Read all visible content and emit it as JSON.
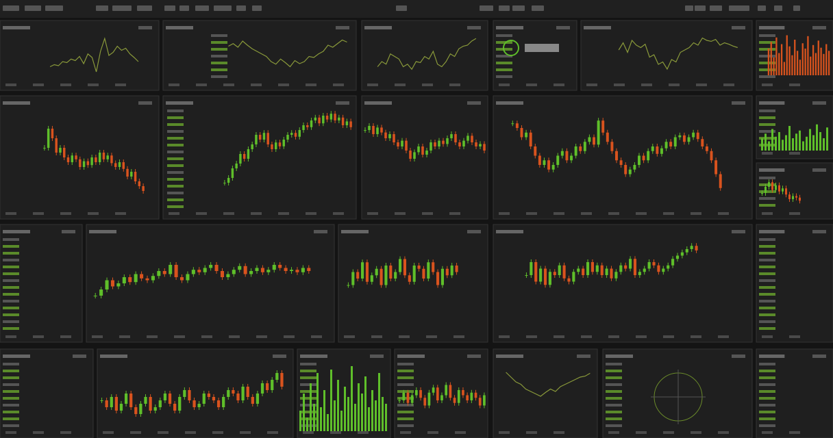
{
  "up_color": "#5fbf2a",
  "down_color": "#d9531e",
  "line_color": "#8a9a3a",
  "charts": [
    {
      "type": "line",
      "ylim": [
        0,
        100
      ],
      "values": [
        30,
        34,
        32,
        40,
        38,
        45,
        42,
        50,
        36,
        55,
        48,
        20,
        60,
        85,
        52,
        58,
        70,
        62,
        66,
        55,
        48,
        40
      ]
    },
    {
      "type": "line",
      "ylim": [
        0,
        100
      ],
      "values": [
        70,
        75,
        68,
        80,
        72,
        65,
        60,
        55,
        50,
        40,
        35,
        45,
        38,
        30,
        42,
        36,
        40,
        50,
        48,
        55,
        60,
        72,
        68,
        75,
        82,
        78
      ]
    },
    {
      "type": "line",
      "ylim": [
        0,
        100
      ],
      "values": [
        30,
        40,
        35,
        55,
        50,
        45,
        30,
        35,
        25,
        40,
        38,
        50,
        45,
        60,
        35,
        30,
        40,
        55,
        50,
        65,
        70,
        72,
        80,
        85
      ]
    },
    {
      "type": "line",
      "ylim": [
        0,
        100
      ],
      "values": [
        60,
        75,
        55,
        80,
        70,
        65,
        72,
        45,
        50,
        30,
        35,
        20,
        40,
        35,
        55,
        60,
        65,
        75,
        70,
        85,
        80,
        78,
        82,
        70,
        75,
        72,
        68,
        65
      ]
    },
    {
      "type": "bar",
      "ylim": [
        0,
        100
      ],
      "values": [
        60,
        75,
        40,
        85,
        50,
        70,
        30,
        90,
        65,
        45,
        80,
        55,
        35,
        72,
        60,
        88,
        42,
        68,
        50,
        78,
        62,
        48,
        70,
        55
      ]
    },
    {
      "type": "candlestick",
      "ylim": [
        0,
        100
      ],
      "values": [
        60,
        80,
        70,
        55,
        60,
        50,
        45,
        52,
        48,
        40,
        46,
        42,
        50,
        45,
        55,
        48,
        52,
        44,
        40,
        45,
        38,
        30,
        35,
        25,
        20,
        15
      ]
    },
    {
      "type": "candlestick",
      "ylim": [
        0,
        100
      ],
      "values": [
        20,
        25,
        35,
        40,
        50,
        45,
        55,
        60,
        70,
        65,
        72,
        60,
        55,
        62,
        58,
        65,
        70,
        72,
        68,
        75,
        80,
        78,
        85,
        88,
        82,
        90,
        86,
        92,
        85,
        88,
        80,
        84,
        78
      ]
    },
    {
      "type": "candlestick",
      "ylim": [
        0,
        100
      ],
      "values": [
        75,
        80,
        70,
        78,
        72,
        65,
        70,
        60,
        55,
        62,
        50,
        40,
        48,
        55,
        45,
        50,
        60,
        55,
        62,
        58,
        65,
        70,
        60,
        55,
        62,
        68,
        60,
        55,
        58,
        50
      ]
    },
    {
      "type": "candlestick",
      "ylim": [
        0,
        100
      ],
      "values": [
        85,
        80,
        70,
        75,
        60,
        50,
        40,
        45,
        35,
        40,
        50,
        55,
        45,
        50,
        60,
        55,
        65,
        70,
        62,
        88,
        75,
        65,
        55,
        45,
        40,
        30,
        35,
        40,
        50,
        45,
        55,
        60,
        52,
        58,
        65,
        60,
        70,
        72,
        65,
        70,
        75,
        68,
        60,
        55,
        45,
        30,
        15
      ]
    },
    {
      "type": "bar",
      "ylim": [
        0,
        100
      ],
      "values": [
        40,
        55,
        30,
        70,
        45,
        60,
        35,
        50,
        80,
        40,
        55,
        65,
        30,
        45,
        70,
        50,
        85,
        60,
        40,
        75
      ]
    },
    {
      "type": "candlestick",
      "ylim": [
        0,
        100
      ],
      "values": [
        40,
        60,
        75,
        50,
        65,
        45,
        55,
        35,
        20,
        30,
        25,
        15
      ]
    },
    {
      "type": "candlestick",
      "ylim": [
        0,
        100
      ],
      "values": [
        20,
        30,
        45,
        35,
        40,
        50,
        42,
        55,
        48,
        45,
        52,
        60,
        55,
        70,
        50,
        45,
        55,
        62,
        58,
        65,
        70,
        60,
        50,
        55,
        62,
        68,
        55,
        60,
        65,
        58,
        62,
        70,
        65,
        60,
        62,
        58,
        65,
        60
      ]
    },
    {
      "type": "candlestick",
      "ylim": [
        0,
        100
      ],
      "values": [
        30,
        50,
        40,
        65,
        35,
        45,
        55,
        30,
        60,
        40,
        50,
        70,
        45,
        35,
        60,
        55,
        40,
        65,
        50,
        30,
        55,
        45,
        60,
        50
      ]
    },
    {
      "type": "candlestick",
      "ylim": [
        0,
        100
      ],
      "values": [
        40,
        60,
        30,
        50,
        25,
        45,
        40,
        55,
        35,
        30,
        45,
        50,
        40,
        60,
        45,
        55,
        40,
        50,
        35,
        45,
        55,
        50,
        65,
        40,
        45,
        50,
        60,
        55,
        45,
        50,
        55,
        65,
        70,
        75,
        80,
        85,
        78
      ]
    },
    {
      "type": "candlestick",
      "ylim": [
        0,
        100
      ],
      "values": [
        40,
        30,
        45,
        25,
        35,
        50,
        30,
        20,
        35,
        45,
        25,
        30,
        40,
        50,
        35,
        25,
        45,
        55,
        40,
        30,
        35,
        50,
        45,
        40,
        30,
        45,
        55,
        50,
        40,
        60,
        45,
        35,
        50,
        65,
        55,
        70,
        80,
        60
      ]
    },
    {
      "type": "bar",
      "ylim": [
        0,
        100
      ],
      "values": [
        30,
        55,
        20,
        70,
        40,
        85,
        35,
        60,
        25,
        90,
        45,
        75,
        30,
        65,
        50,
        95,
        40,
        70,
        55,
        80,
        35,
        60,
        45,
        85,
        50,
        40
      ]
    },
    {
      "type": "candlestick",
      "ylim": [
        0,
        100
      ],
      "values": [
        40,
        55,
        35,
        50,
        60,
        45,
        30,
        55,
        65,
        40,
        50,
        70,
        45,
        35,
        60,
        50,
        40,
        55,
        45,
        30,
        50
      ]
    },
    {
      "type": "line",
      "ylim": [
        0,
        100
      ],
      "values": [
        80,
        70,
        60,
        55,
        45,
        40,
        35,
        30,
        38,
        45,
        40,
        50,
        55,
        60,
        65,
        70,
        72,
        78
      ]
    }
  ]
}
